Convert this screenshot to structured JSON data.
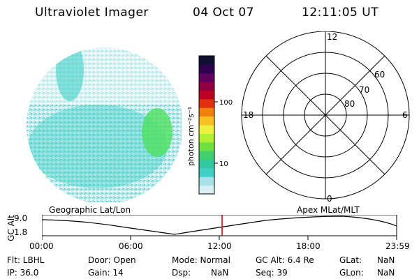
{
  "header": {
    "instrument": "Ultraviolet Imager",
    "date": "04 Oct 07",
    "time": "12:11:05 UT"
  },
  "colorbar": {
    "unit_label": "photon cm⁻²s⁻¹",
    "tick_100": "100",
    "tick_10": "10",
    "colors": [
      "#d8f0f4",
      "#a8e0e8",
      "#40d0c8",
      "#30c8a0",
      "#40d070",
      "#70e040",
      "#b0f030",
      "#f0f040",
      "#f8c020",
      "#f08010",
      "#e03010",
      "#c00020",
      "#900040",
      "#600060",
      "#300050",
      "#101030"
    ]
  },
  "polar": {
    "mlt_12": "12",
    "mlt_18": "18",
    "mlt_6": "6",
    "mlt_0": "0",
    "lat_60": "60",
    "lat_70": "70",
    "lat_80": "80"
  },
  "timeline": {
    "left_label": "Geographic Lat/Lon",
    "right_label": "Apex  MLat/MLT",
    "yaxis_title": "GC Alt",
    "ytick_top": "9.0",
    "ytick_bottom": "1.8",
    "xticks": [
      "00:00",
      "06:00",
      "12:00",
      "18:00",
      "23:59"
    ]
  },
  "status": {
    "flt": "Flt: LBHL",
    "ip": "IP: 36.0",
    "door": "Door: Open",
    "gain": "Gain: 14",
    "mode": "Mode: Normal",
    "dsp_label": "Dsp:",
    "dsp_value": "NaN",
    "gc_alt": "GC Alt: 6.4 Re",
    "seq": "Seq: 39",
    "glat_label": "GLat:",
    "glat_value": "NaN",
    "glon_label": "GLon:",
    "glon_value": "NaN"
  },
  "colors": {
    "marker": "#c00000",
    "aurora_base": "#b8e4ec",
    "aurora_mid": "#40d0c8",
    "aurora_high": "#50e060"
  }
}
